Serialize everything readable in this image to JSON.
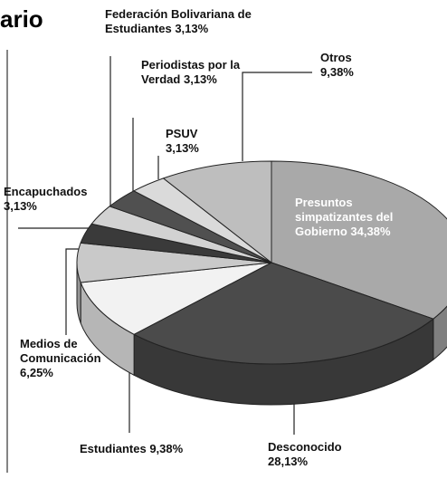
{
  "chart_data": {
    "type": "pie3d",
    "title": "ario",
    "categories": [
      "Presuntos simpatizantes del Gobierno",
      "Desconocido",
      "Estudiantes",
      "Medios de Comunicación",
      "Encapuchados",
      "Federación Bolivariana de Estudiantes",
      "Periodistas por la Verdad",
      "PSUV",
      "Otros"
    ],
    "values": [
      34.38,
      28.13,
      9.38,
      6.25,
      3.13,
      3.13,
      3.13,
      3.13,
      9.38
    ],
    "value_labels": [
      "34,38%",
      "28,13%",
      "9,38%",
      "6,25%",
      "3,13%",
      "3,13%",
      "3,13%",
      "3,13%",
      "9,38%"
    ],
    "colors": [
      "#a9a9a9",
      "#4b4b4b",
      "#f2f2f2",
      "#c9c9c9",
      "#3a3a3a",
      "#d2d2d2",
      "#505050",
      "#dadada",
      "#bebebe"
    ]
  }
}
